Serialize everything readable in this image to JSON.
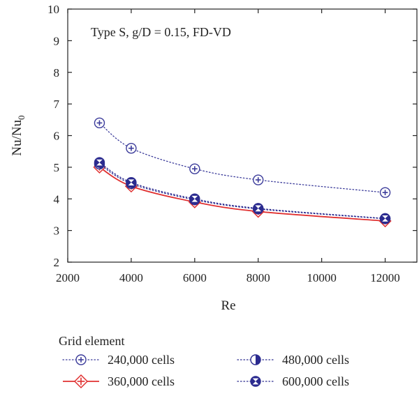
{
  "chart_data": {
    "type": "line",
    "annotation": "Type S, g/D = 0.15, FD-VD",
    "xlabel": "Re",
    "ylabel_main": "Nu/Nu",
    "ylabel_sub": "0",
    "xlim": [
      2000,
      13000
    ],
    "ylim": [
      2,
      10
    ],
    "xticks": [
      2000,
      4000,
      6000,
      8000,
      10000,
      12000
    ],
    "yticks": [
      2,
      3,
      4,
      5,
      6,
      7,
      8,
      9,
      10
    ],
    "xtick_labels": [
      "2000",
      "4000",
      "6000",
      "8000",
      "10000",
      "12000"
    ],
    "ytick_labels": [
      "2",
      "3",
      "4",
      "5",
      "6",
      "7",
      "8",
      "9",
      "10"
    ],
    "x": [
      3000,
      4000,
      6000,
      8000,
      12000
    ],
    "legend_title": "Grid element",
    "series": [
      {
        "name": "240,000 cells",
        "values": [
          6.4,
          5.6,
          4.95,
          4.6,
          4.2
        ],
        "color": "#3b3b9a",
        "line": "dotted",
        "marker": "circle-plus"
      },
      {
        "name": "360,000 cells",
        "values": [
          5.0,
          4.4,
          3.9,
          3.6,
          3.3
        ],
        "color": "#e03030",
        "line": "solid",
        "marker": "diamond-plus"
      },
      {
        "name": "480,000 cells",
        "values": [
          5.1,
          4.48,
          3.97,
          3.68,
          3.37
        ],
        "color": "#2b2b8f",
        "line": "dotted",
        "marker": "circle-half"
      },
      {
        "name": "600,000 cells",
        "values": [
          5.15,
          4.52,
          4.0,
          3.7,
          3.38
        ],
        "color": "#2b2b8f",
        "line": "dotted",
        "marker": "circle-x"
      }
    ]
  }
}
